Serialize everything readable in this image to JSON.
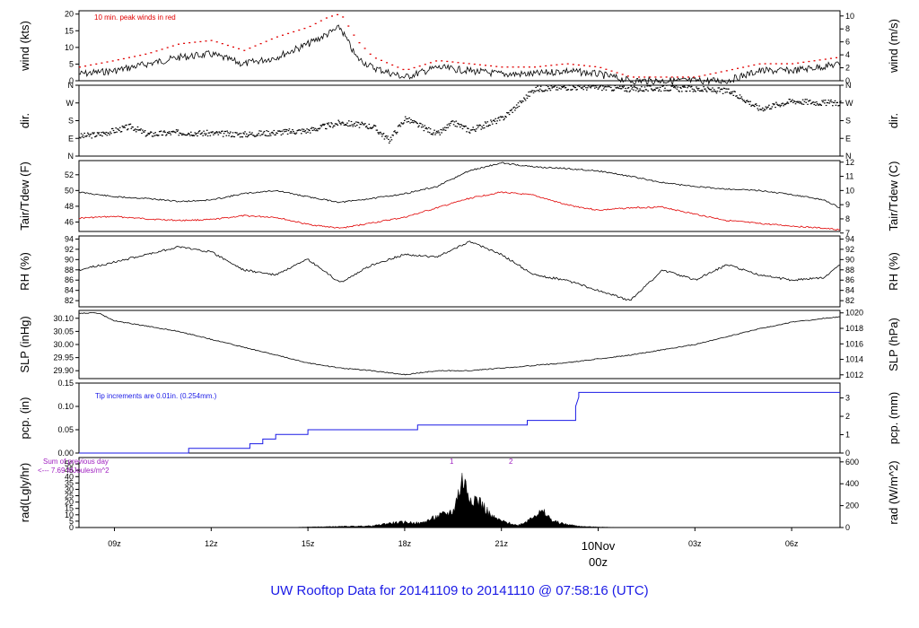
{
  "footer": {
    "title": "UW Rooftop Data for 20141109  to  20141110 @ 07:58:16  (UTC)"
  },
  "time_axis": {
    "ticks": [
      "09z",
      "12z",
      "15z",
      "18z",
      "21z",
      "00z",
      "03z",
      "06z"
    ],
    "date_label": "10Nov",
    "date_label_color": "#e00000"
  },
  "colors": {
    "trace": "#000000",
    "peak": "#e00000",
    "dew": "#e00000",
    "precip": "#1a1ae6",
    "radnote": "#a020c0"
  },
  "chart_data": [
    {
      "id": "wind",
      "type": "line",
      "ylabel_left": "wind (kts)",
      "ylabel_right": "wind (m/s)",
      "ylim": [
        0,
        21
      ],
      "yticks": [
        0,
        5,
        10,
        15,
        20
      ],
      "yticks_right": [
        0,
        2,
        4,
        6,
        8,
        10
      ],
      "annotation": "10 min. peak winds in red",
      "x": [
        7.9,
        9,
        10,
        11,
        12,
        13,
        14,
        15,
        15.6,
        16,
        16.5,
        17,
        18,
        19,
        20,
        21,
        22,
        23,
        24,
        25,
        26,
        27,
        28,
        29,
        30,
        31.5
      ],
      "series": [
        {
          "name": "wind",
          "values": [
            2,
            3,
            5,
            7,
            8,
            5,
            7,
            11,
            14,
            16,
            7,
            4,
            1,
            4,
            3,
            2,
            2,
            3,
            2,
            0,
            0,
            0,
            0,
            3,
            3,
            5
          ]
        },
        {
          "name": "peak",
          "values": [
            4,
            6,
            8,
            11,
            12,
            9,
            13,
            16,
            19,
            20,
            12,
            7,
            3,
            6,
            5,
            4,
            4,
            5,
            4,
            1,
            1,
            1,
            3,
            5,
            5,
            7
          ]
        }
      ]
    },
    {
      "id": "dir",
      "type": "scatter",
      "ylabel_left": "dir.",
      "ylabel_right": "dir.",
      "ylim": [
        0,
        360
      ],
      "ytick_labels": [
        "N",
        "E",
        "S",
        "W",
        "N"
      ],
      "x": [
        7.9,
        8.5,
        9,
        9.5,
        10,
        11,
        12,
        13,
        14,
        15,
        16,
        17,
        17.5,
        18,
        19,
        19.5,
        20,
        21,
        21.5,
        22,
        23,
        24,
        25,
        26,
        27,
        28,
        28.5,
        29,
        30,
        31,
        31.5
      ],
      "values": [
        100,
        110,
        130,
        150,
        110,
        120,
        115,
        110,
        120,
        130,
        170,
        150,
        80,
        190,
        110,
        170,
        130,
        190,
        260,
        340,
        350,
        350,
        340,
        345,
        340,
        330,
        290,
        240,
        280,
        270,
        270
      ]
    },
    {
      "id": "temp",
      "type": "line",
      "ylabel_left": "Tair/Tdew (F)",
      "ylabel_right": "Tair/Tdew (C)",
      "ylim": [
        44.8,
        53.8
      ],
      "yticks": [
        46,
        48,
        50,
        52
      ],
      "yticks_right": [
        7,
        8,
        9,
        10,
        11,
        12
      ],
      "x": [
        7.9,
        9,
        10,
        11,
        12,
        13,
        14,
        15,
        16,
        17,
        18,
        19,
        20,
        21,
        22,
        23,
        24,
        25,
        26,
        27,
        28,
        29,
        30,
        31,
        31.5
      ],
      "series": [
        {
          "name": "Tair",
          "values": [
            49.8,
            49.2,
            49.0,
            48.6,
            48.8,
            49.6,
            50.0,
            49.2,
            48.5,
            49.0,
            49.6,
            50.5,
            52.5,
            53.5,
            53.0,
            52.8,
            52.5,
            51.8,
            51.0,
            50.5,
            50.2,
            50.0,
            49.5,
            48.8,
            47.8
          ]
        },
        {
          "name": "Tdew",
          "values": [
            46.5,
            46.7,
            46.4,
            46.2,
            46.3,
            46.8,
            46.6,
            45.7,
            45.2,
            45.9,
            46.6,
            47.8,
            49.0,
            49.8,
            49.4,
            48.2,
            47.5,
            47.8,
            47.9,
            47.0,
            46.2,
            45.8,
            45.5,
            45.2,
            45.0
          ]
        }
      ]
    },
    {
      "id": "rh",
      "type": "line",
      "ylabel_left": "RH (%)",
      "ylabel_right": "RH (%)",
      "ylim": [
        80.8,
        94.6
      ],
      "yticks": [
        82,
        84,
        86,
        88,
        90,
        92,
        94
      ],
      "x": [
        7.9,
        9,
        10,
        11,
        12,
        13,
        14,
        15,
        16,
        17,
        18,
        19,
        20,
        21,
        22,
        23,
        24,
        25,
        26,
        27,
        28,
        29,
        30,
        31,
        31.5
      ],
      "values": [
        88,
        89.5,
        91,
        92.5,
        91.5,
        88,
        87,
        90,
        85.5,
        89,
        91,
        90.5,
        93.5,
        91,
        87,
        86,
        84,
        82,
        88,
        86,
        89,
        87,
        86,
        86.5,
        89
      ]
    },
    {
      "id": "slp",
      "type": "line",
      "ylabel_left": "SLP (inHg)",
      "ylabel_right": "SLP (hPa)",
      "ylim": [
        29.87,
        30.13
      ],
      "yticks": [
        29.9,
        29.95,
        30.0,
        30.05,
        30.1
      ],
      "yticks_right": [
        1012,
        1014,
        1016,
        1018,
        1020
      ],
      "x": [
        7.9,
        8.5,
        9,
        10,
        11,
        12,
        13,
        14,
        15,
        16,
        17,
        18,
        19,
        20,
        21,
        22,
        23,
        24,
        25,
        26,
        27,
        28,
        29,
        30,
        31,
        31.5
      ],
      "values": [
        30.12,
        30.12,
        30.09,
        30.07,
        30.05,
        30.02,
        29.99,
        29.96,
        29.93,
        29.91,
        29.9,
        29.885,
        29.9,
        29.9,
        29.91,
        29.92,
        29.93,
        29.945,
        29.96,
        29.98,
        30.0,
        30.03,
        30.06,
        30.085,
        30.1,
        30.105
      ]
    },
    {
      "id": "pcp",
      "type": "line",
      "ylabel_left": "pcp. (in)",
      "ylabel_right": "pcp. (mm)",
      "ylim": [
        0,
        0.15
      ],
      "yticks": [
        0.0,
        0.05,
        0.1,
        0.15
      ],
      "yticks_right": [
        0,
        1,
        2,
        3
      ],
      "annotation": "Tip increments are 0.01in. (0.254mm.)",
      "x": [
        7.9,
        11.3,
        11.3,
        13.2,
        13.2,
        13.6,
        13.6,
        14.0,
        14.0,
        15.0,
        15.0,
        18.4,
        18.4,
        21.8,
        21.8,
        23.3,
        23.3,
        23.4,
        23.4,
        31.5
      ],
      "values": [
        0,
        0,
        0.01,
        0.01,
        0.02,
        0.02,
        0.03,
        0.03,
        0.04,
        0.04,
        0.05,
        0.05,
        0.06,
        0.06,
        0.07,
        0.07,
        0.1,
        0.12,
        0.13,
        0.13
      ]
    },
    {
      "id": "rad",
      "type": "area",
      "ylabel_left": "rad(Lgly/hr)",
      "ylabel_right": "rad (W/m^2)",
      "ylim": [
        0,
        55
      ],
      "yticks": [
        0,
        5,
        10,
        15,
        20,
        25,
        30,
        35,
        40,
        45,
        50
      ],
      "yticks_right": [
        0,
        200,
        400,
        600
      ],
      "annotation_lines": [
        "Sum of previous day",
        "<--- 7.69 MJoules/m^2"
      ],
      "markers": [
        "1",
        "2"
      ],
      "x": [
        7.9,
        14.5,
        15,
        16,
        17,
        17.5,
        18,
        18.5,
        19,
        19.5,
        19.8,
        20,
        20.3,
        20.7,
        21,
        21.5,
        21.8,
        22,
        22.3,
        22.6,
        23,
        23.5,
        24,
        24.8,
        31.5
      ],
      "values": [
        0,
        0,
        0.5,
        1,
        1.5,
        4,
        5,
        4,
        10,
        15,
        45,
        30,
        25,
        10,
        6,
        2,
        6,
        12,
        14,
        6,
        3,
        1,
        0.5,
        0,
        0
      ]
    }
  ]
}
